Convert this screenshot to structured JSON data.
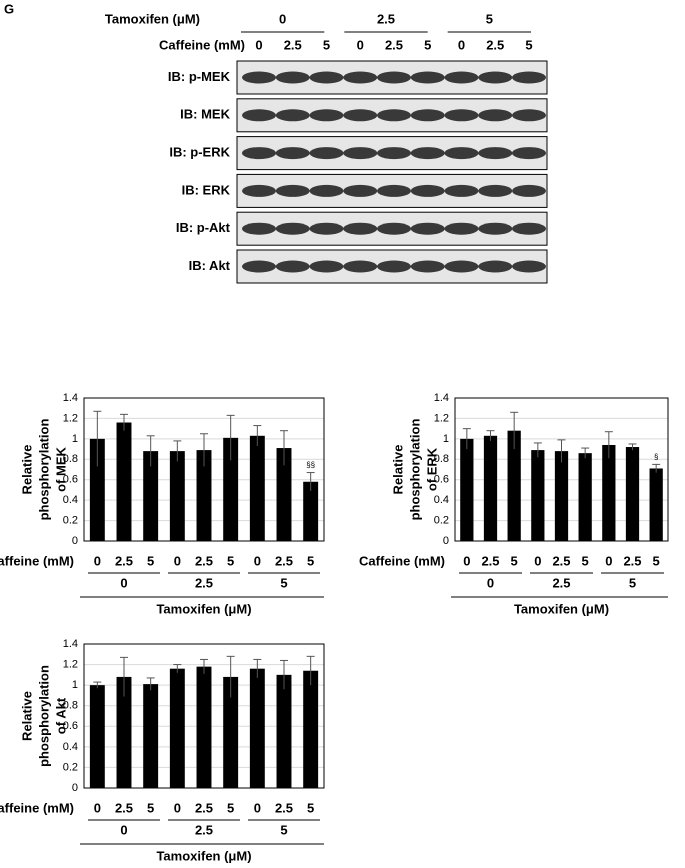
{
  "panel_label": "G",
  "blot": {
    "treatment_label": "Tamoxifen (μM)",
    "treatment_groups": [
      "0",
      "2.5",
      "5"
    ],
    "dose_label": "Caffeine (mM)",
    "doses": [
      "0",
      "2.5",
      "5",
      "0",
      "2.5",
      "5",
      "0",
      "2.5",
      "5"
    ],
    "rows": [
      "IB: p-MEK",
      "IB: MEK",
      "IB: p-ERK",
      "IB: ERK",
      "IB: p-Akt",
      "IB: Akt"
    ]
  },
  "chart_data": [
    {
      "type": "bar",
      "ylabel": [
        "Relative",
        "phosphorylation",
        "of MEK"
      ],
      "category_label": "Caffeine (mM)",
      "categories": [
        "0",
        "2.5",
        "5",
        "0",
        "2.5",
        "5",
        "0",
        "2.5",
        "5"
      ],
      "groups": [
        "0",
        "2.5",
        "5"
      ],
      "xlabel": "Tamoxifen (μM)",
      "values": [
        1.0,
        1.16,
        0.88,
        0.88,
        0.89,
        1.01,
        1.03,
        0.91,
        0.58
      ],
      "errors": [
        0.27,
        0.08,
        0.15,
        0.1,
        0.16,
        0.22,
        0.1,
        0.17,
        0.09
      ],
      "significance": [
        null,
        null,
        null,
        null,
        null,
        null,
        null,
        null,
        "§§"
      ],
      "color": "#000000",
      "ylim": [
        0,
        1.4
      ],
      "yticks": [
        0,
        0.2,
        0.4,
        0.6,
        0.8,
        1,
        1.2,
        1.4
      ],
      "grid": true
    },
    {
      "type": "bar",
      "ylabel": [
        "Relative",
        "phosphorylation",
        "of ERK"
      ],
      "category_label": "Caffeine (mM)",
      "categories": [
        "0",
        "2.5",
        "5",
        "0",
        "2.5",
        "5",
        "0",
        "2.5",
        "5"
      ],
      "groups": [
        "0",
        "2.5",
        "5"
      ],
      "xlabel": "Tamoxifen (μM)",
      "values": [
        1.0,
        1.03,
        1.08,
        0.89,
        0.88,
        0.86,
        0.94,
        0.92,
        0.71
      ],
      "errors": [
        0.1,
        0.05,
        0.18,
        0.07,
        0.11,
        0.05,
        0.13,
        0.03,
        0.04
      ],
      "significance": [
        null,
        null,
        null,
        null,
        null,
        null,
        null,
        null,
        "§"
      ],
      "color": "#000000",
      "ylim": [
        0,
        1.4
      ],
      "yticks": [
        0,
        0.2,
        0.4,
        0.6,
        0.8,
        1,
        1.2,
        1.4
      ],
      "grid": true
    },
    {
      "type": "bar",
      "ylabel": [
        "Relative",
        "phosphorylation",
        "of Akt"
      ],
      "category_label": "Caffeine (mM)",
      "categories": [
        "0",
        "2.5",
        "5",
        "0",
        "2.5",
        "5",
        "0",
        "2.5",
        "5"
      ],
      "groups": [
        "0",
        "2.5",
        "5"
      ],
      "xlabel": "Tamoxifen (μM)",
      "values": [
        1.0,
        1.08,
        1.01,
        1.16,
        1.18,
        1.08,
        1.16,
        1.1,
        1.14
      ],
      "errors": [
        0.03,
        0.19,
        0.06,
        0.04,
        0.07,
        0.2,
        0.09,
        0.14,
        0.14
      ],
      "significance": [
        null,
        null,
        null,
        null,
        null,
        null,
        null,
        null,
        null
      ],
      "color": "#000000",
      "ylim": [
        0,
        1.4
      ],
      "yticks": [
        0,
        0.2,
        0.4,
        0.6,
        0.8,
        1,
        1.2,
        1.4
      ],
      "grid": true
    }
  ]
}
